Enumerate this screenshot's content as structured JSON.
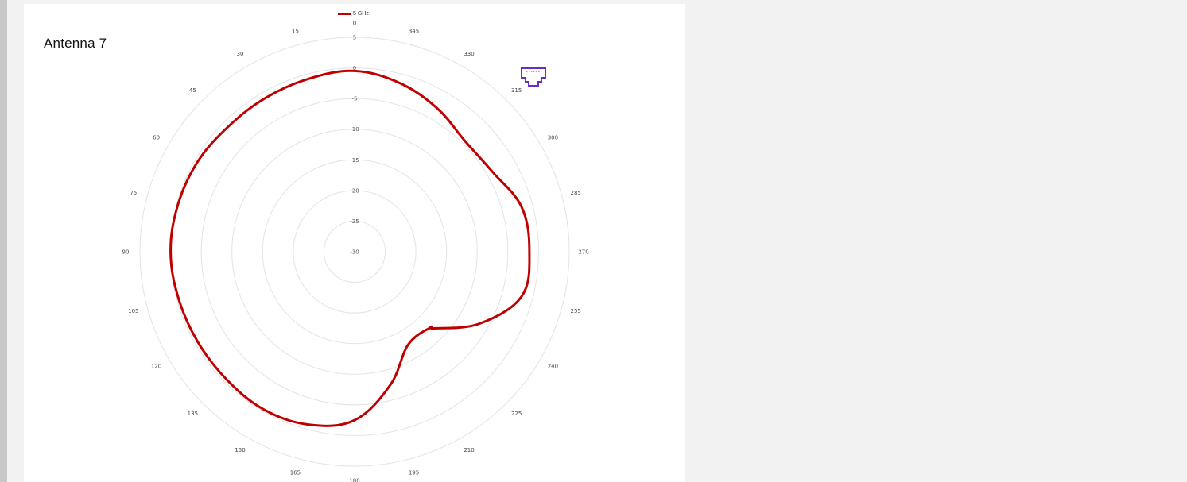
{
  "page": {
    "title": "Antenna 7"
  },
  "legend": {
    "label": "5 GHz"
  },
  "icons": {
    "port": "ethernet-port-icon"
  },
  "colors": {
    "series": "#c00000",
    "grid": "#e3e3e3",
    "icon": "#6a2fc2"
  },
  "chart_data": {
    "type": "radar",
    "radial_ticks": [
      5,
      0,
      -5,
      -10,
      -15,
      -20,
      -25,
      -30
    ],
    "radial_range": [
      -30,
      5
    ],
    "angle_labels": [
      0,
      15,
      30,
      45,
      60,
      75,
      90,
      105,
      120,
      135,
      150,
      165,
      180,
      195,
      210,
      225,
      240,
      255,
      270,
      285,
      300,
      315,
      330,
      345
    ],
    "angle_direction": "counterclockwise",
    "angle_zero_position": "top",
    "legend_position": "top",
    "series": [
      {
        "name": "5 GHz",
        "angles": [
          0,
          15,
          30,
          45,
          60,
          75,
          90,
          105,
          120,
          135,
          150,
          165,
          180,
          195,
          210,
          225,
          226,
          240,
          255,
          270,
          285,
          300,
          315,
          330,
          345
        ],
        "values": [
          -0.5,
          -0.8,
          -1.0,
          -1.0,
          -0.5,
          -0.2,
          0.0,
          -0.3,
          -0.5,
          -0.5,
          -0.3,
          -0.8,
          -2.5,
          -7.5,
          -12.5,
          -12.5,
          -12.0,
          -6.5,
          -1.8,
          -1.5,
          -1.8,
          -4.0,
          -4.5,
          -3.0,
          -1.5
        ]
      }
    ]
  }
}
